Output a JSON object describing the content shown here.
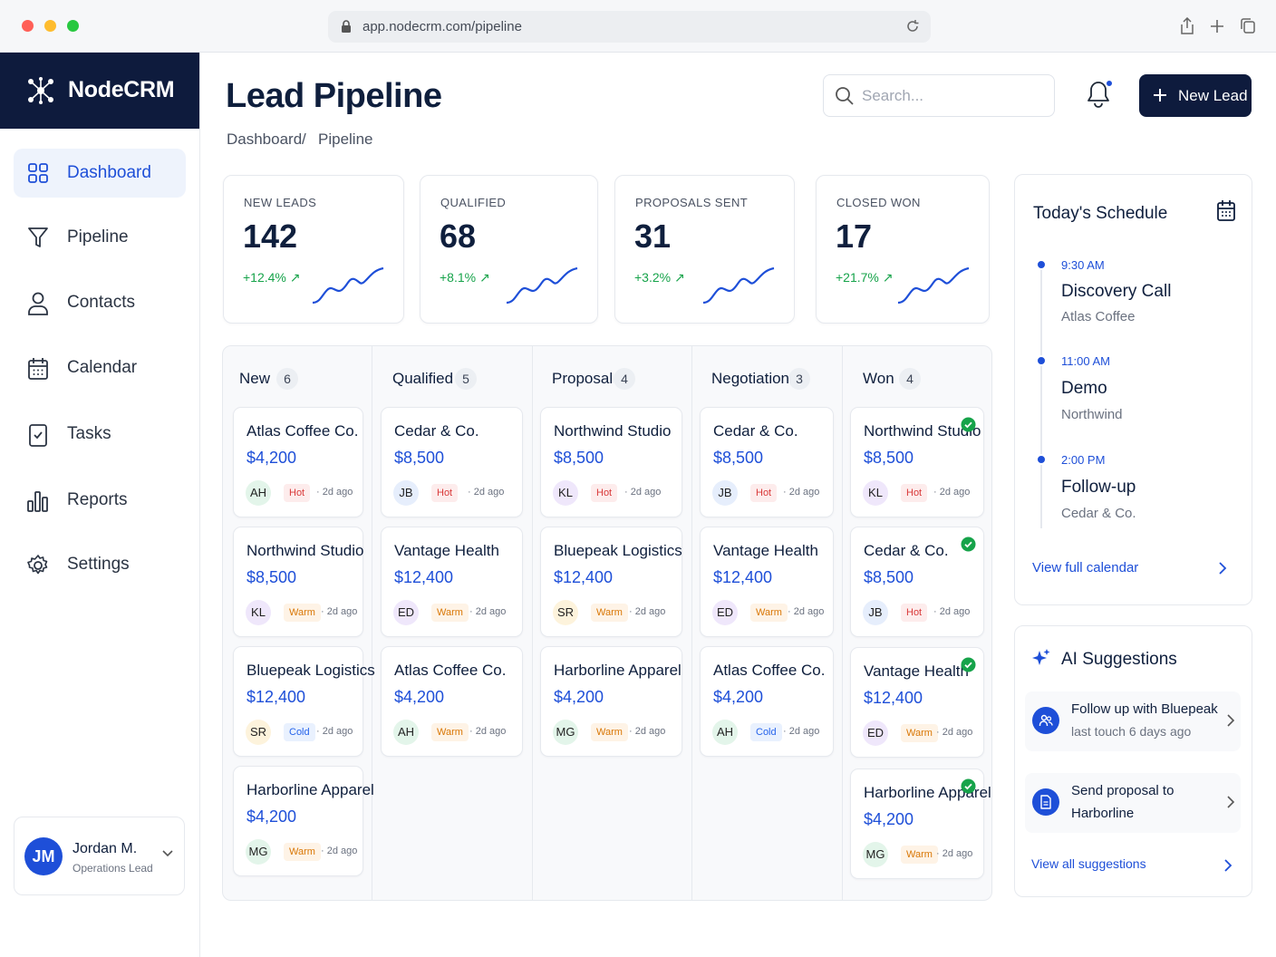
{
  "browser": {
    "url": "app.nodecrm.com/pipeline"
  },
  "brand": {
    "name": "NodeCRM"
  },
  "sidebar": {
    "items": [
      {
        "label": "Dashboard",
        "icon": "grid-icon",
        "active": true
      },
      {
        "label": "Pipeline",
        "icon": "funnel-icon"
      },
      {
        "label": "Contacts",
        "icon": "user-icon"
      },
      {
        "label": "Calendar",
        "icon": "calendar-icon"
      },
      {
        "label": "Tasks",
        "icon": "clipboard-check-icon"
      },
      {
        "label": "Reports",
        "icon": "bar-chart-icon"
      },
      {
        "label": "Settings",
        "icon": "gear-icon"
      }
    ],
    "user": {
      "initials": "JM",
      "name": "Jordan M.",
      "role": "Operations Lead"
    }
  },
  "header": {
    "title": "Lead Pipeline",
    "breadcrumb": [
      "Dashboard",
      "/",
      "Pipeline"
    ],
    "search_placeholder": "Search...",
    "new_lead_label": "New Lead"
  },
  "stats": [
    {
      "label": "NEW LEADS",
      "value": "142",
      "delta": "+12.4% ↗"
    },
    {
      "label": "QUALIFIED",
      "value": "68",
      "delta": "+8.1% ↗"
    },
    {
      "label": "PROPOSALS SENT",
      "value": "31",
      "delta": "+3.2% ↗"
    },
    {
      "label": "CLOSED WON",
      "value": "17",
      "delta": "+21.7% ↗"
    }
  ],
  "columns": [
    {
      "title": "New",
      "count": "6",
      "cards": [
        {
          "name": "Atlas Coffee Co.",
          "value": "$4,200",
          "initials": "AH",
          "tag": "Hot",
          "time": "· 2d ago"
        },
        {
          "name": "Northwind Studio",
          "value": "$8,500",
          "initials": "KL",
          "tag": "Warm",
          "time": "· 2d ago"
        },
        {
          "name": "Bluepeak Logistics",
          "value": "$12,400",
          "initials": "SR",
          "tag": "Cold",
          "time": "· 2d ago"
        },
        {
          "name": "Harborline Apparel",
          "value": "$4,200",
          "initials": "MG",
          "tag": "Warm",
          "time": "· 2d ago"
        }
      ]
    },
    {
      "title": "Qualified",
      "count": "5",
      "cards": [
        {
          "name": "Cedar & Co.",
          "value": "$8,500",
          "initials": "JB",
          "tag": "Hot",
          "time": "· 2d ago"
        },
        {
          "name": "Vantage Health",
          "value": "$12,400",
          "initials": "ED",
          "tag": "Warm",
          "time": "· 2d ago"
        },
        {
          "name": "Atlas Coffee Co.",
          "value": "$4,200",
          "initials": "AH",
          "tag": "Warm",
          "time": "· 2d ago"
        }
      ]
    },
    {
      "title": "Proposal",
      "count": "4",
      "cards": [
        {
          "name": "Northwind Studio",
          "value": "$8,500",
          "initials": "KL",
          "tag": "Hot",
          "time": "· 2d ago"
        },
        {
          "name": "Bluepeak Logistics",
          "value": "$12,400",
          "initials": "SR",
          "tag": "Warm",
          "time": "· 2d ago"
        },
        {
          "name": "Harborline Apparel",
          "value": "$4,200",
          "initials": "MG",
          "tag": "Warm",
          "time": "· 2d ago"
        }
      ]
    },
    {
      "title": "Negotiation",
      "count": "3",
      "cards": [
        {
          "name": "Cedar & Co.",
          "value": "$8,500",
          "initials": "JB",
          "tag": "Hot",
          "time": "· 2d ago"
        },
        {
          "name": "Vantage Health",
          "value": "$12,400",
          "initials": "ED",
          "tag": "Warm",
          "time": "· 2d ago"
        },
        {
          "name": "Atlas Coffee Co.",
          "value": "$4,200",
          "initials": "AH",
          "tag": "Cold",
          "time": "· 2d ago"
        }
      ]
    },
    {
      "title": "Won",
      "count": "4",
      "cards": [
        {
          "name": "Northwind Studio",
          "value": "$8,500",
          "initials": "KL",
          "tag": "Hot",
          "time": "· 2d ago",
          "won": true
        },
        {
          "name": "Cedar & Co.",
          "value": "$8,500",
          "initials": "JB",
          "tag": "Hot",
          "time": "· 2d ago",
          "won": true
        },
        {
          "name": "Vantage Health",
          "value": "$12,400",
          "initials": "ED",
          "tag": "Warm",
          "time": "· 2d ago",
          "won": true
        },
        {
          "name": "Harborline Apparel",
          "value": "$4,200",
          "initials": "MG",
          "tag": "Warm",
          "time": "· 2d ago",
          "won": true
        }
      ]
    }
  ],
  "avatar_colors": {
    "AH": "#e3f5ea",
    "KL": "#efe7fb",
    "SR": "#fdf3dc",
    "MG": "#e3f5ea",
    "JB": "#e6eefc",
    "ED": "#efe7fb"
  },
  "schedule": {
    "title": "Today's Schedule",
    "events": [
      {
        "time": "9:30 AM",
        "title": "Discovery Call",
        "sub": "Atlas Coffee"
      },
      {
        "time": "11:00 AM",
        "title": "Demo",
        "sub": "Northwind"
      },
      {
        "time": "2:00 PM",
        "title": "Follow-up",
        "sub": "Cedar & Co."
      }
    ],
    "link": "View full calendar"
  },
  "ai": {
    "title": "AI Suggestions",
    "items": [
      {
        "line1": "Follow up with Bluepeak",
        "line2": "last touch 6 days ago",
        "icon": "users-icon"
      },
      {
        "line1": "Send proposal to",
        "line2": "Harborline",
        "icon": "document-icon"
      }
    ],
    "link": "View all suggestions"
  },
  "colors": {
    "accent": "#1e4fd8",
    "navy": "#0e1b3d",
    "positive": "#16a34a",
    "won": "#16a34a"
  }
}
